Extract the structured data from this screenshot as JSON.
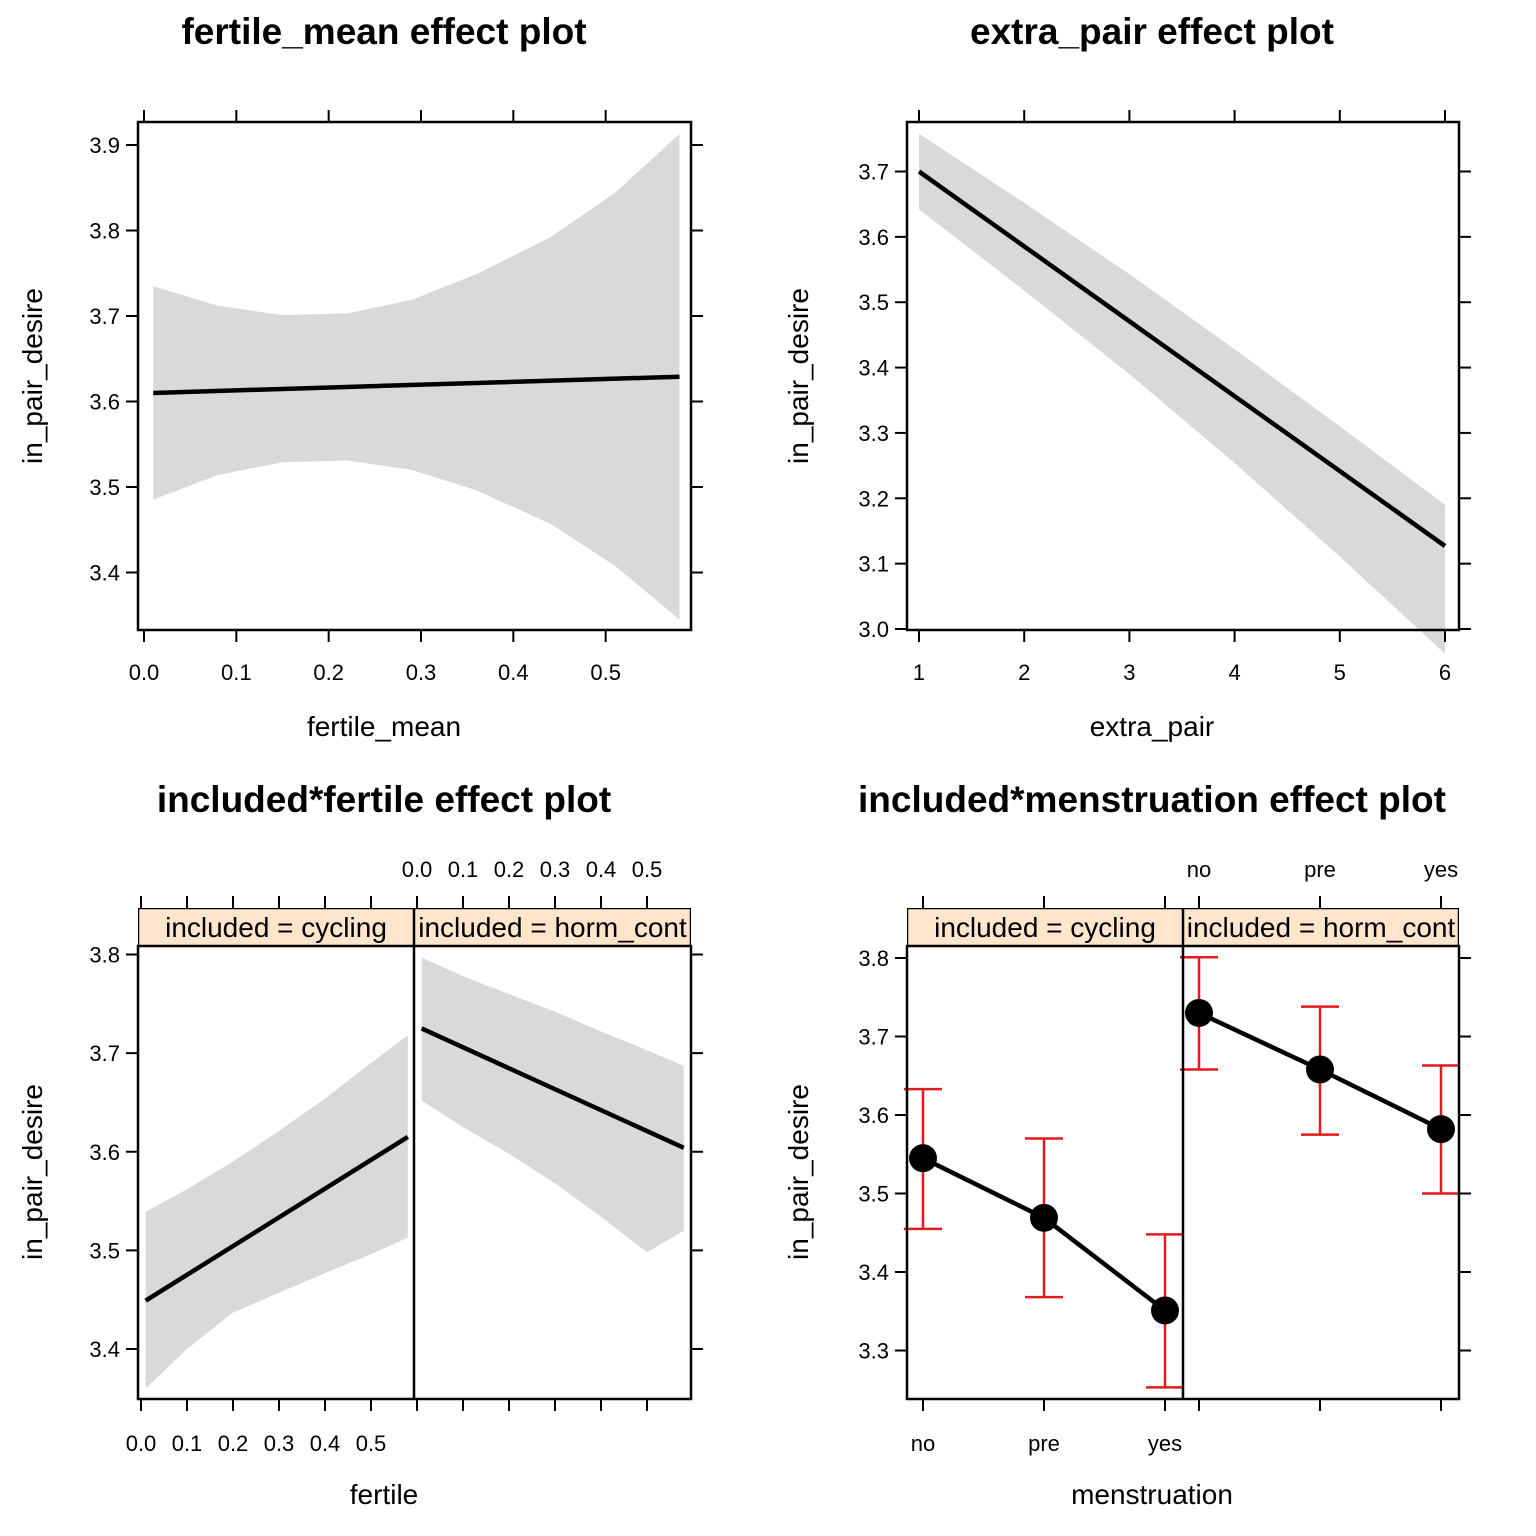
{
  "colors": {
    "band": "#d9d9d9",
    "line": "#000000",
    "errorbar": "#e41a1c",
    "strip": "#ffe5cc"
  },
  "chart_data": [
    {
      "type": "line",
      "title": "fertile_mean effect plot",
      "xlabel": "fertile_mean",
      "ylabel": "in_pair_desire",
      "xlim": [
        0.0,
        0.6
      ],
      "ylim": [
        3.33,
        3.93
      ],
      "xticks": [
        "0.0",
        "0.1",
        "0.2",
        "0.3",
        "0.4",
        "0.5"
      ],
      "yticks": [
        "3.4",
        "3.5",
        "3.6",
        "3.7",
        "3.8",
        "3.9"
      ],
      "band_x": [
        0.01,
        0.08,
        0.15,
        0.22,
        0.29,
        0.36,
        0.44,
        0.51,
        0.58
      ],
      "band_lower": [
        3.485,
        3.514,
        3.529,
        3.531,
        3.52,
        3.496,
        3.457,
        3.408,
        3.345
      ],
      "band_upper": [
        3.735,
        3.712,
        3.701,
        3.703,
        3.719,
        3.749,
        3.792,
        3.844,
        3.913
      ],
      "line_x": [
        0.01,
        0.58
      ],
      "line_y": [
        3.61,
        3.629
      ]
    },
    {
      "type": "line",
      "title": "extra_pair effect plot",
      "xlabel": "extra_pair",
      "ylabel": "in_pair_desire",
      "xlim": [
        0.9,
        6.1
      ],
      "ylim": [
        2.98,
        3.78
      ],
      "xticks": [
        "1",
        "2",
        "3",
        "4",
        "5",
        "6"
      ],
      "yticks": [
        "3.0",
        "3.1",
        "3.2",
        "3.3",
        "3.4",
        "3.5",
        "3.6",
        "3.7"
      ],
      "band_x": [
        1,
        2,
        3,
        4,
        5,
        6
      ],
      "band_lower": [
        3.642,
        3.518,
        3.39,
        3.254,
        3.111,
        2.962
      ],
      "band_upper": [
        3.758,
        3.652,
        3.543,
        3.428,
        3.31,
        3.19
      ],
      "line_x": [
        1,
        6
      ],
      "line_y": [
        3.7,
        3.127
      ]
    },
    {
      "type": "line",
      "title": "included*fertile effect plot",
      "xlabel": "fertile",
      "ylabel": "in_pair_desire",
      "xlim": [
        0.0,
        0.6
      ],
      "ylim": [
        3.35,
        3.85
      ],
      "xticks": [
        "0.0",
        "0.1",
        "0.2",
        "0.3",
        "0.4",
        "0.5"
      ],
      "yticks": [
        "3.4",
        "3.5",
        "3.6",
        "3.7",
        "3.8"
      ],
      "panels": [
        {
          "strip": "included = cycling",
          "band_x": [
            0.01,
            0.1,
            0.2,
            0.3,
            0.4,
            0.5,
            0.58
          ],
          "band_lower": [
            3.36,
            3.4,
            3.437,
            3.457,
            3.477,
            3.496,
            3.513
          ],
          "band_upper": [
            3.539,
            3.562,
            3.59,
            3.621,
            3.654,
            3.69,
            3.718
          ],
          "line_x": [
            0.01,
            0.58
          ],
          "line_y": [
            3.449,
            3.615
          ]
        },
        {
          "strip": "included = horm_cont",
          "band_x": [
            0.01,
            0.1,
            0.2,
            0.3,
            0.4,
            0.5,
            0.58
          ],
          "band_lower": [
            3.652,
            3.625,
            3.598,
            3.568,
            3.534,
            3.498,
            3.52
          ],
          "band_upper": [
            3.797,
            3.778,
            3.76,
            3.742,
            3.722,
            3.703,
            3.687
          ],
          "line_x": [
            0.01,
            0.58
          ],
          "line_y": [
            3.725,
            3.604
          ]
        }
      ]
    },
    {
      "type": "scatter",
      "title": "included*menstruation effect plot",
      "xlabel": "menstruation",
      "ylabel": "in_pair_desire",
      "categories": [
        "no",
        "pre",
        "yes"
      ],
      "ylim": [
        3.24,
        3.82
      ],
      "yticks": [
        "3.3",
        "3.4",
        "3.5",
        "3.6",
        "3.7",
        "3.8"
      ],
      "panels": [
        {
          "strip": "included = cycling",
          "values": [
            3.545,
            3.469,
            3.351
          ],
          "lower": [
            3.455,
            3.368,
            3.253
          ],
          "upper": [
            3.633,
            3.57,
            3.448
          ]
        },
        {
          "strip": "included = horm_cont",
          "values": [
            3.73,
            3.658,
            3.582
          ],
          "lower": [
            3.658,
            3.575,
            3.5
          ],
          "upper": [
            3.801,
            3.738,
            3.663
          ]
        }
      ]
    }
  ]
}
